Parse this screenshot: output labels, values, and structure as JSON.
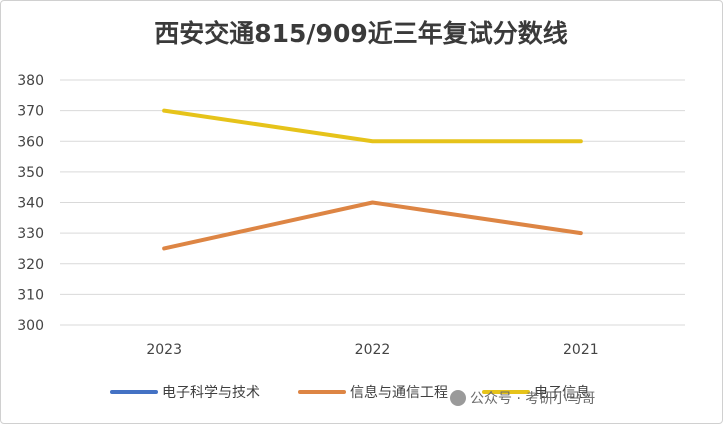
{
  "chart_data": {
    "type": "line",
    "title": "西安交通815/909近三年复试分数线",
    "categories": [
      "2023",
      "2022",
      "2021"
    ],
    "ylim": [
      300,
      380
    ],
    "yticks": [
      300,
      310,
      320,
      330,
      340,
      350,
      360,
      370,
      380
    ],
    "grid": true,
    "legend_position": "bottom",
    "series": [
      {
        "name": "电子科学与技术",
        "color": "#4472c4",
        "values": [
          null,
          null,
          null
        ]
      },
      {
        "name": "信息与通信工程",
        "color": "#dd8544",
        "values": [
          325,
          340,
          330
        ]
      },
      {
        "name": "电子信息",
        "color": "#e6c31a",
        "values": [
          370,
          360,
          360
        ]
      }
    ]
  },
  "watermark": "公众号 · 考研小马哥"
}
